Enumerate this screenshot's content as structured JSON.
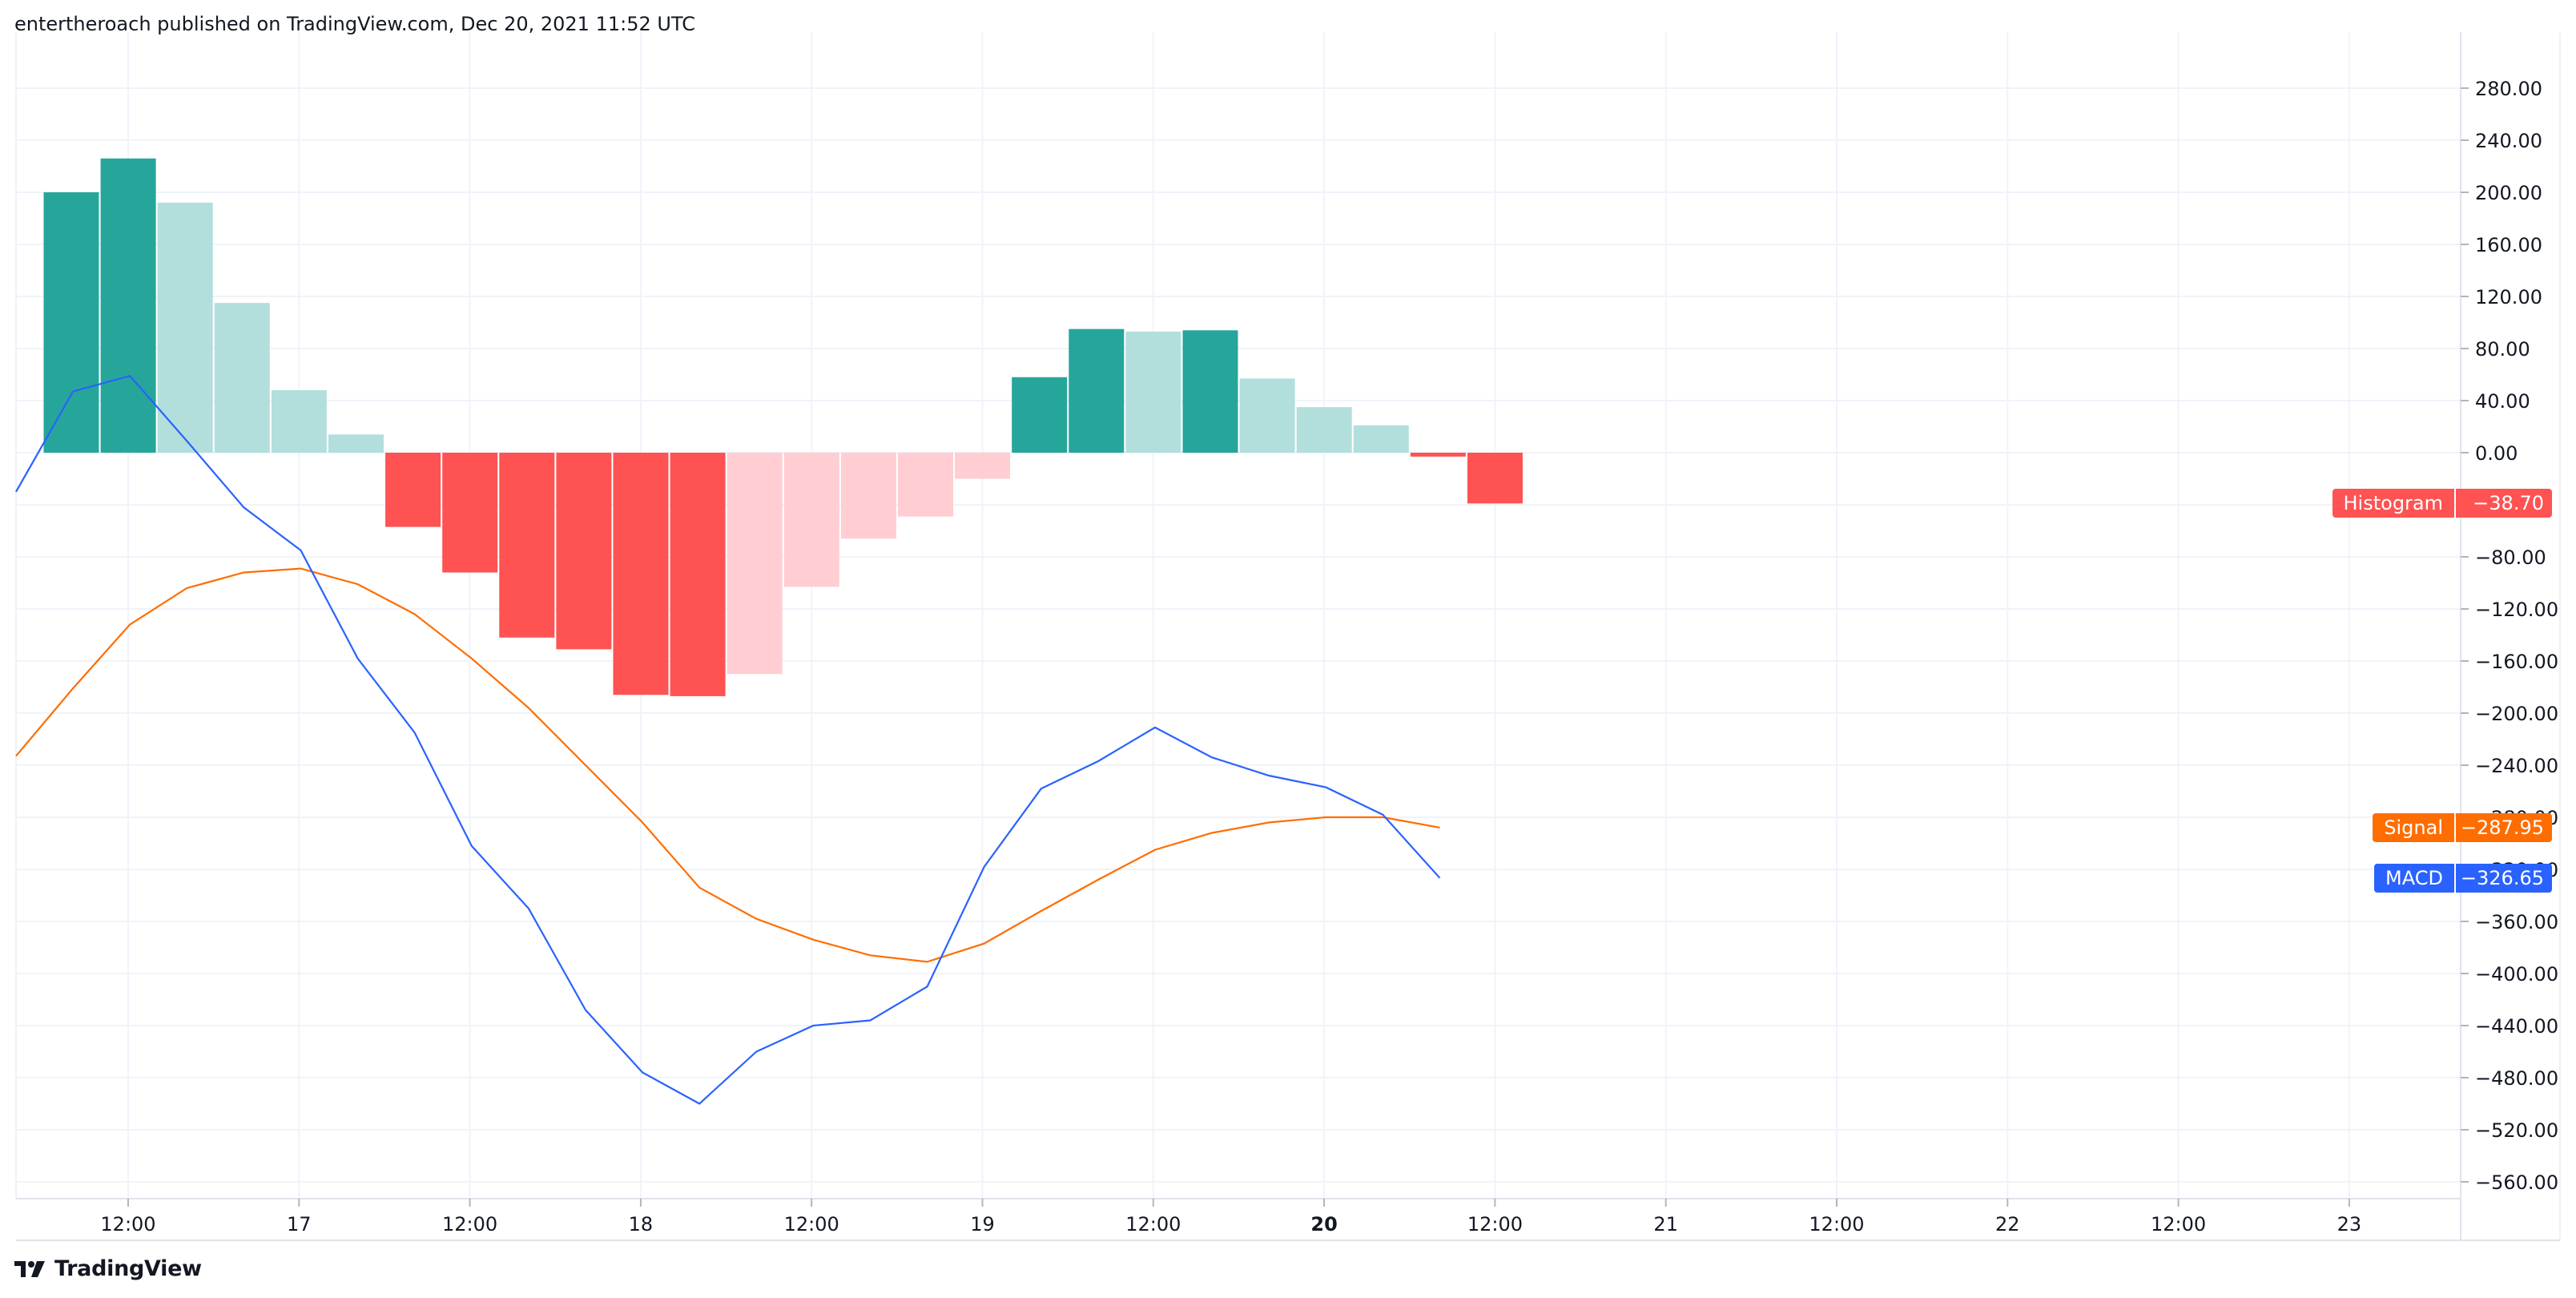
{
  "header": {
    "publisher_text": "entertheroach published on TradingView.com, Dec 20, 2021 11:52 UTC"
  },
  "footer": {
    "brand": "TradingView"
  },
  "colors": {
    "macd": "#2962ff",
    "signal": "#ff6d00",
    "hist_pos_strong": "#26a69a",
    "hist_pos_weak": "#b2dfdb",
    "hist_neg_strong": "#ff5252",
    "hist_neg_weak": "#ffcdd2",
    "grid": "#f0f3fa",
    "axis_text": "#131722"
  },
  "chart_data": {
    "type": "bar",
    "title": "MACD",
    "xlabel": "",
    "ylabel": "",
    "ylim": [
      -580,
      305
    ],
    "y_ticks": [
      "280.00",
      "240.00",
      "200.00",
      "160.00",
      "120.00",
      "80.00",
      "40.00",
      "0.00",
      "−40.00",
      "−80.00",
      "−120.00",
      "−160.00",
      "−200.00",
      "−240.00",
      "−280.00",
      "−320.00",
      "−360.00",
      "−400.00",
      "−440.00",
      "−480.00",
      "−520.00",
      "−560.00"
    ],
    "y_tick_values": [
      280,
      240,
      200,
      160,
      120,
      80,
      40,
      0,
      -40,
      -80,
      -120,
      -160,
      -200,
      -240,
      -280,
      -320,
      -360,
      -400,
      -440,
      -480,
      -520,
      -560
    ],
    "x_ticks": [
      {
        "label": "12:00",
        "t": 2,
        "bold": false
      },
      {
        "label": "17",
        "t": 5,
        "bold": false
      },
      {
        "label": "12:00",
        "t": 8,
        "bold": false
      },
      {
        "label": "18",
        "t": 11,
        "bold": false
      },
      {
        "label": "12:00",
        "t": 14,
        "bold": false
      },
      {
        "label": "19",
        "t": 17,
        "bold": false
      },
      {
        "label": "12:00",
        "t": 20,
        "bold": false
      },
      {
        "label": "20",
        "t": 23,
        "bold": true
      },
      {
        "label": "12:00",
        "t": 26,
        "bold": false
      },
      {
        "label": "21",
        "t": 29,
        "bold": false
      },
      {
        "label": "12:00",
        "t": 32,
        "bold": false
      },
      {
        "label": "22",
        "t": 35,
        "bold": false
      },
      {
        "label": "12:00",
        "t": 38,
        "bold": false
      },
      {
        "label": "23",
        "t": 41,
        "bold": false
      }
    ],
    "series": [
      {
        "name": "Histogram",
        "type": "bar",
        "x": [
          0,
          1,
          2,
          3,
          4,
          5,
          6,
          7,
          8,
          9,
          10,
          11,
          12,
          13,
          14,
          15,
          16,
          17,
          18,
          19,
          20,
          21,
          22,
          23,
          24,
          25
        ],
        "values": [
          200,
          226,
          192,
          115,
          48,
          14,
          -57,
          -92,
          -142,
          -151,
          -186,
          -187,
          -170,
          -103,
          -66,
          -49,
          -20,
          58,
          95,
          93,
          94,
          57,
          35,
          21,
          -3,
          -39
        ]
      },
      {
        "name": "MACD",
        "type": "line",
        "x": [
          0,
          1,
          2,
          3,
          4,
          5,
          6,
          7,
          8,
          9,
          10,
          11,
          12,
          13,
          14,
          15,
          16,
          17,
          18,
          19,
          20,
          21,
          22,
          23,
          24,
          25
        ],
        "values": [
          -30,
          47,
          59,
          9,
          -42,
          -75,
          -158,
          -215,
          -302,
          -350,
          -428,
          -476,
          -500,
          -460,
          -440,
          -436,
          -410,
          -318,
          -258,
          -237,
          -211,
          -234,
          -248,
          -257,
          -278,
          -326.65
        ]
      },
      {
        "name": "Signal",
        "type": "line",
        "x": [
          0,
          1,
          2,
          3,
          4,
          5,
          6,
          7,
          8,
          9,
          10,
          11,
          12,
          13,
          14,
          15,
          16,
          17,
          18,
          19,
          20,
          21,
          22,
          23,
          24,
          25
        ],
        "values": [
          -233,
          -181,
          -132,
          -104,
          -92,
          -89,
          -101,
          -124,
          -158,
          -196,
          -240,
          -284,
          -334,
          -358,
          -374,
          -386,
          -391,
          -377,
          -352,
          -328,
          -305,
          -292,
          -284,
          -280,
          -280,
          -287.95
        ]
      }
    ],
    "labels": [
      {
        "name": "Histogram",
        "value": "−38.70",
        "y": -38.7
      },
      {
        "name": "Signal",
        "value": "−287.95",
        "y": -287.95
      },
      {
        "name": "MACD",
        "value": "−326.65",
        "y": -326.65
      }
    ]
  }
}
